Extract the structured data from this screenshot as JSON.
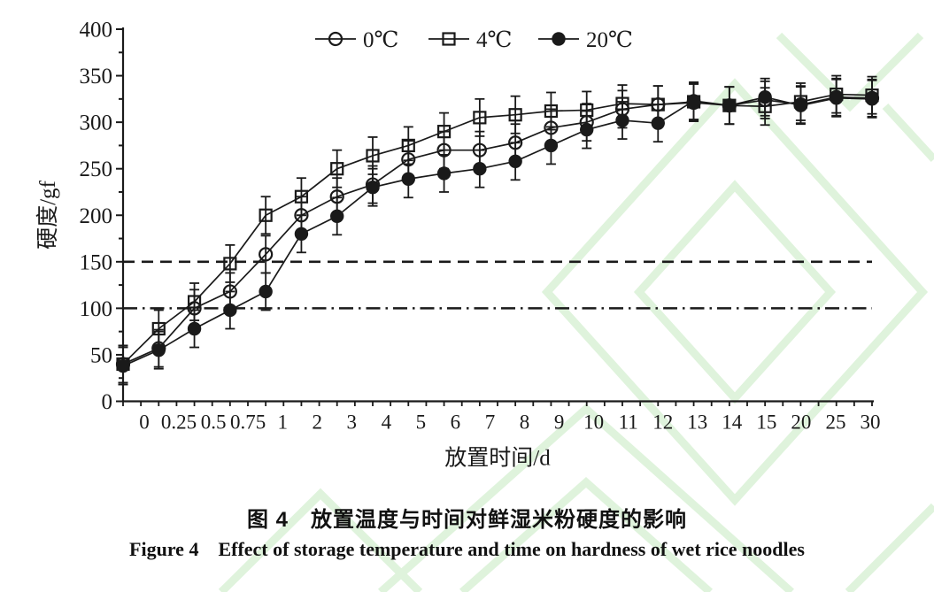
{
  "colors": {
    "ink": "#1a1a1a",
    "watermark": "#dff3dc",
    "background": "#ffffff"
  },
  "chart_data": {
    "type": "line",
    "title": "",
    "xlabel": "放置时间/d",
    "ylabel": "硬度/gf",
    "ylim": [
      0,
      400
    ],
    "ytick_interval": 50,
    "yminor_interval": 25,
    "grid": false,
    "legend_position": "top-center",
    "categories": [
      "0",
      "0.25",
      "0.5",
      "0.75",
      "1",
      "2",
      "3",
      "4",
      "5",
      "6",
      "7",
      "8",
      "9",
      "10",
      "11",
      "12",
      "13",
      "14",
      "15",
      "20",
      "25",
      "30"
    ],
    "series": [
      {
        "name": "0℃",
        "marker": "open-circle",
        "error_bar": 20,
        "values": [
          40,
          57,
          100,
          118,
          158,
          200,
          220,
          233,
          260,
          270,
          270,
          278,
          294,
          300,
          314,
          319,
          321,
          318,
          324,
          319,
          327,
          326
        ]
      },
      {
        "name": "4℃",
        "marker": "open-square",
        "error_bar": 20,
        "values": [
          40,
          78,
          107,
          148,
          200,
          220,
          250,
          264,
          275,
          290,
          305,
          308,
          312,
          313,
          320,
          319,
          322,
          318,
          317,
          322,
          330,
          329
        ]
      },
      {
        "name": "20℃",
        "marker": "filled-circle",
        "error_bar": 20,
        "values": [
          38,
          55,
          78,
          98,
          118,
          180,
          199,
          230,
          239,
          245,
          250,
          258,
          275,
          292,
          302,
          299,
          323,
          318,
          327,
          318,
          326,
          325
        ]
      }
    ],
    "reference_lines": [
      {
        "value": 150,
        "style": "dashed"
      },
      {
        "value": 100,
        "style": "dash-dot"
      }
    ],
    "ytick_labels": [
      "0",
      "50",
      "100",
      "150",
      "200",
      "250",
      "300",
      "350",
      "400"
    ]
  },
  "caption": {
    "zh": "图 4　放置温度与时间对鲜湿米粉硬度的影响",
    "en": "Figure 4　Effect of storage temperature and time on hardness of wet rice noodles"
  }
}
